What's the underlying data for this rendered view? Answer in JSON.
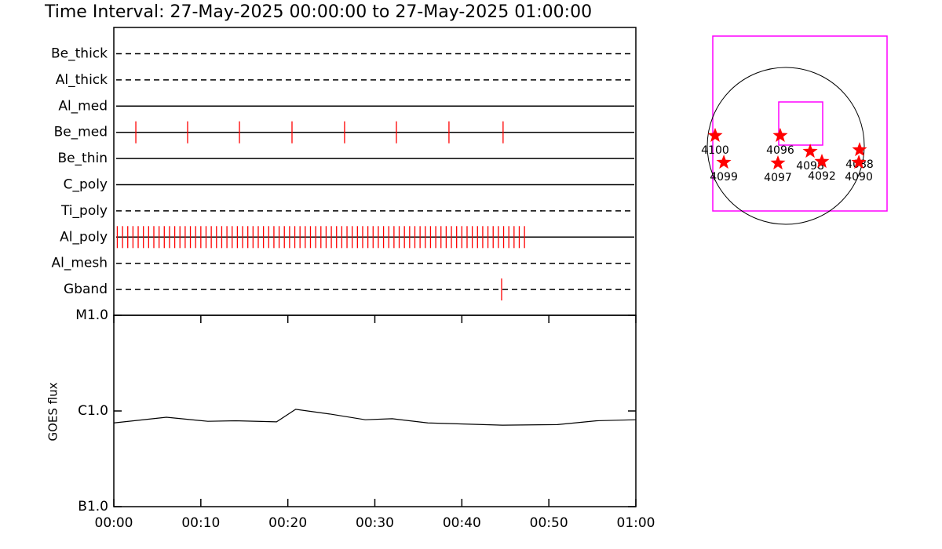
{
  "chart_data": [
    {
      "type": "timeline",
      "title": "Time Interval: 27-May-2025 00:00:00 to 27-May-2025 01:00:00",
      "categories": [
        "Be_thick",
        "Al_thick",
        "Al_med",
        "Be_med",
        "Be_thin",
        "C_poly",
        "Ti_poly",
        "Al_poly",
        "Al_mesh",
        "Gband"
      ],
      "linestyles": [
        "dashed",
        "dashed",
        "solid",
        "solid",
        "solid",
        "solid",
        "dashed",
        "solid",
        "dashed",
        "dashed"
      ],
      "color": "#ff0000",
      "xlim": [
        0,
        60
      ],
      "events": [
        [],
        [],
        [],
        [
          2.53,
          8.48,
          14.44,
          20.48,
          26.52,
          32.48,
          38.52,
          44.74
        ],
        [],
        [],
        [],
        [
          0.4,
          1.0,
          1.6,
          2.2,
          2.8,
          3.4,
          4.0,
          4.6,
          5.2,
          5.8,
          6.4,
          7.0,
          7.6,
          8.2,
          8.8,
          9.4,
          10.0,
          10.6,
          11.2,
          11.8,
          12.4,
          13.0,
          13.6,
          14.2,
          14.8,
          15.4,
          16.0,
          16.6,
          17.2,
          17.8,
          18.4,
          19.0,
          19.6,
          20.2,
          20.8,
          21.4,
          22.0,
          22.6,
          23.2,
          23.8,
          24.4,
          25.0,
          25.6,
          26.2,
          26.8,
          27.4,
          28.0,
          28.6,
          29.2,
          29.8,
          30.4,
          31.0,
          31.6,
          32.2,
          32.8,
          33.4,
          34.0,
          34.6,
          35.2,
          35.8,
          36.4,
          37.0,
          37.6,
          38.2,
          38.8,
          39.4,
          40.0,
          40.6,
          41.2,
          41.8,
          42.4,
          43.0,
          43.6,
          44.2,
          44.8,
          45.4,
          46.0,
          46.6,
          47.2
        ],
        [],
        [
          44.57
        ]
      ]
    },
    {
      "type": "line",
      "ylabel": "GOES flux",
      "log_scale": true,
      "color": "#000000",
      "x": [
        0,
        6.05,
        10.8,
        14.0,
        18.7,
        20.9,
        24.8,
        28.9,
        32.0,
        36.1,
        44.7,
        51.0,
        55.5,
        60
      ],
      "values": [
        7.5e-07,
        8.6e-07,
        7.8e-07,
        7.9e-07,
        7.7e-07,
        1.04e-06,
        9.3e-07,
        8.1e-07,
        8.3e-07,
        7.5e-07,
        7.1e-07,
        7.2e-07,
        7.9e-07,
        8.1e-07
      ],
      "xlim": [
        0,
        60
      ],
      "xticks": [
        {
          "value": 0,
          "label": "00:00"
        },
        {
          "value": 10,
          "label": "00:10"
        },
        {
          "value": 20,
          "label": "00:20"
        },
        {
          "value": 30,
          "label": "00:30"
        },
        {
          "value": 40,
          "label": "00:40"
        },
        {
          "value": 50,
          "label": "00:50"
        },
        {
          "value": 60,
          "label": "01:00"
        }
      ],
      "ylim": [
        1e-07,
        1e-05
      ],
      "yticks": [
        {
          "value": 1e-07,
          "label": "B1.0"
        },
        {
          "value": 1e-06,
          "label": "C1.0"
        },
        {
          "value": 1e-05,
          "label": "M1.0"
        }
      ]
    },
    {
      "type": "scatter",
      "color": "#ff0000",
      "labels": [
        "4100",
        "4099",
        "4096",
        "4097",
        "4098",
        "4092",
        "4088",
        "4090"
      ],
      "x": [
        -855,
        -750,
        -67,
        -95,
        295,
        437,
        893,
        884
      ],
      "values": [
        124,
        -200,
        124,
        -209,
        -67,
        -190,
        -48,
        -200
      ]
    }
  ]
}
